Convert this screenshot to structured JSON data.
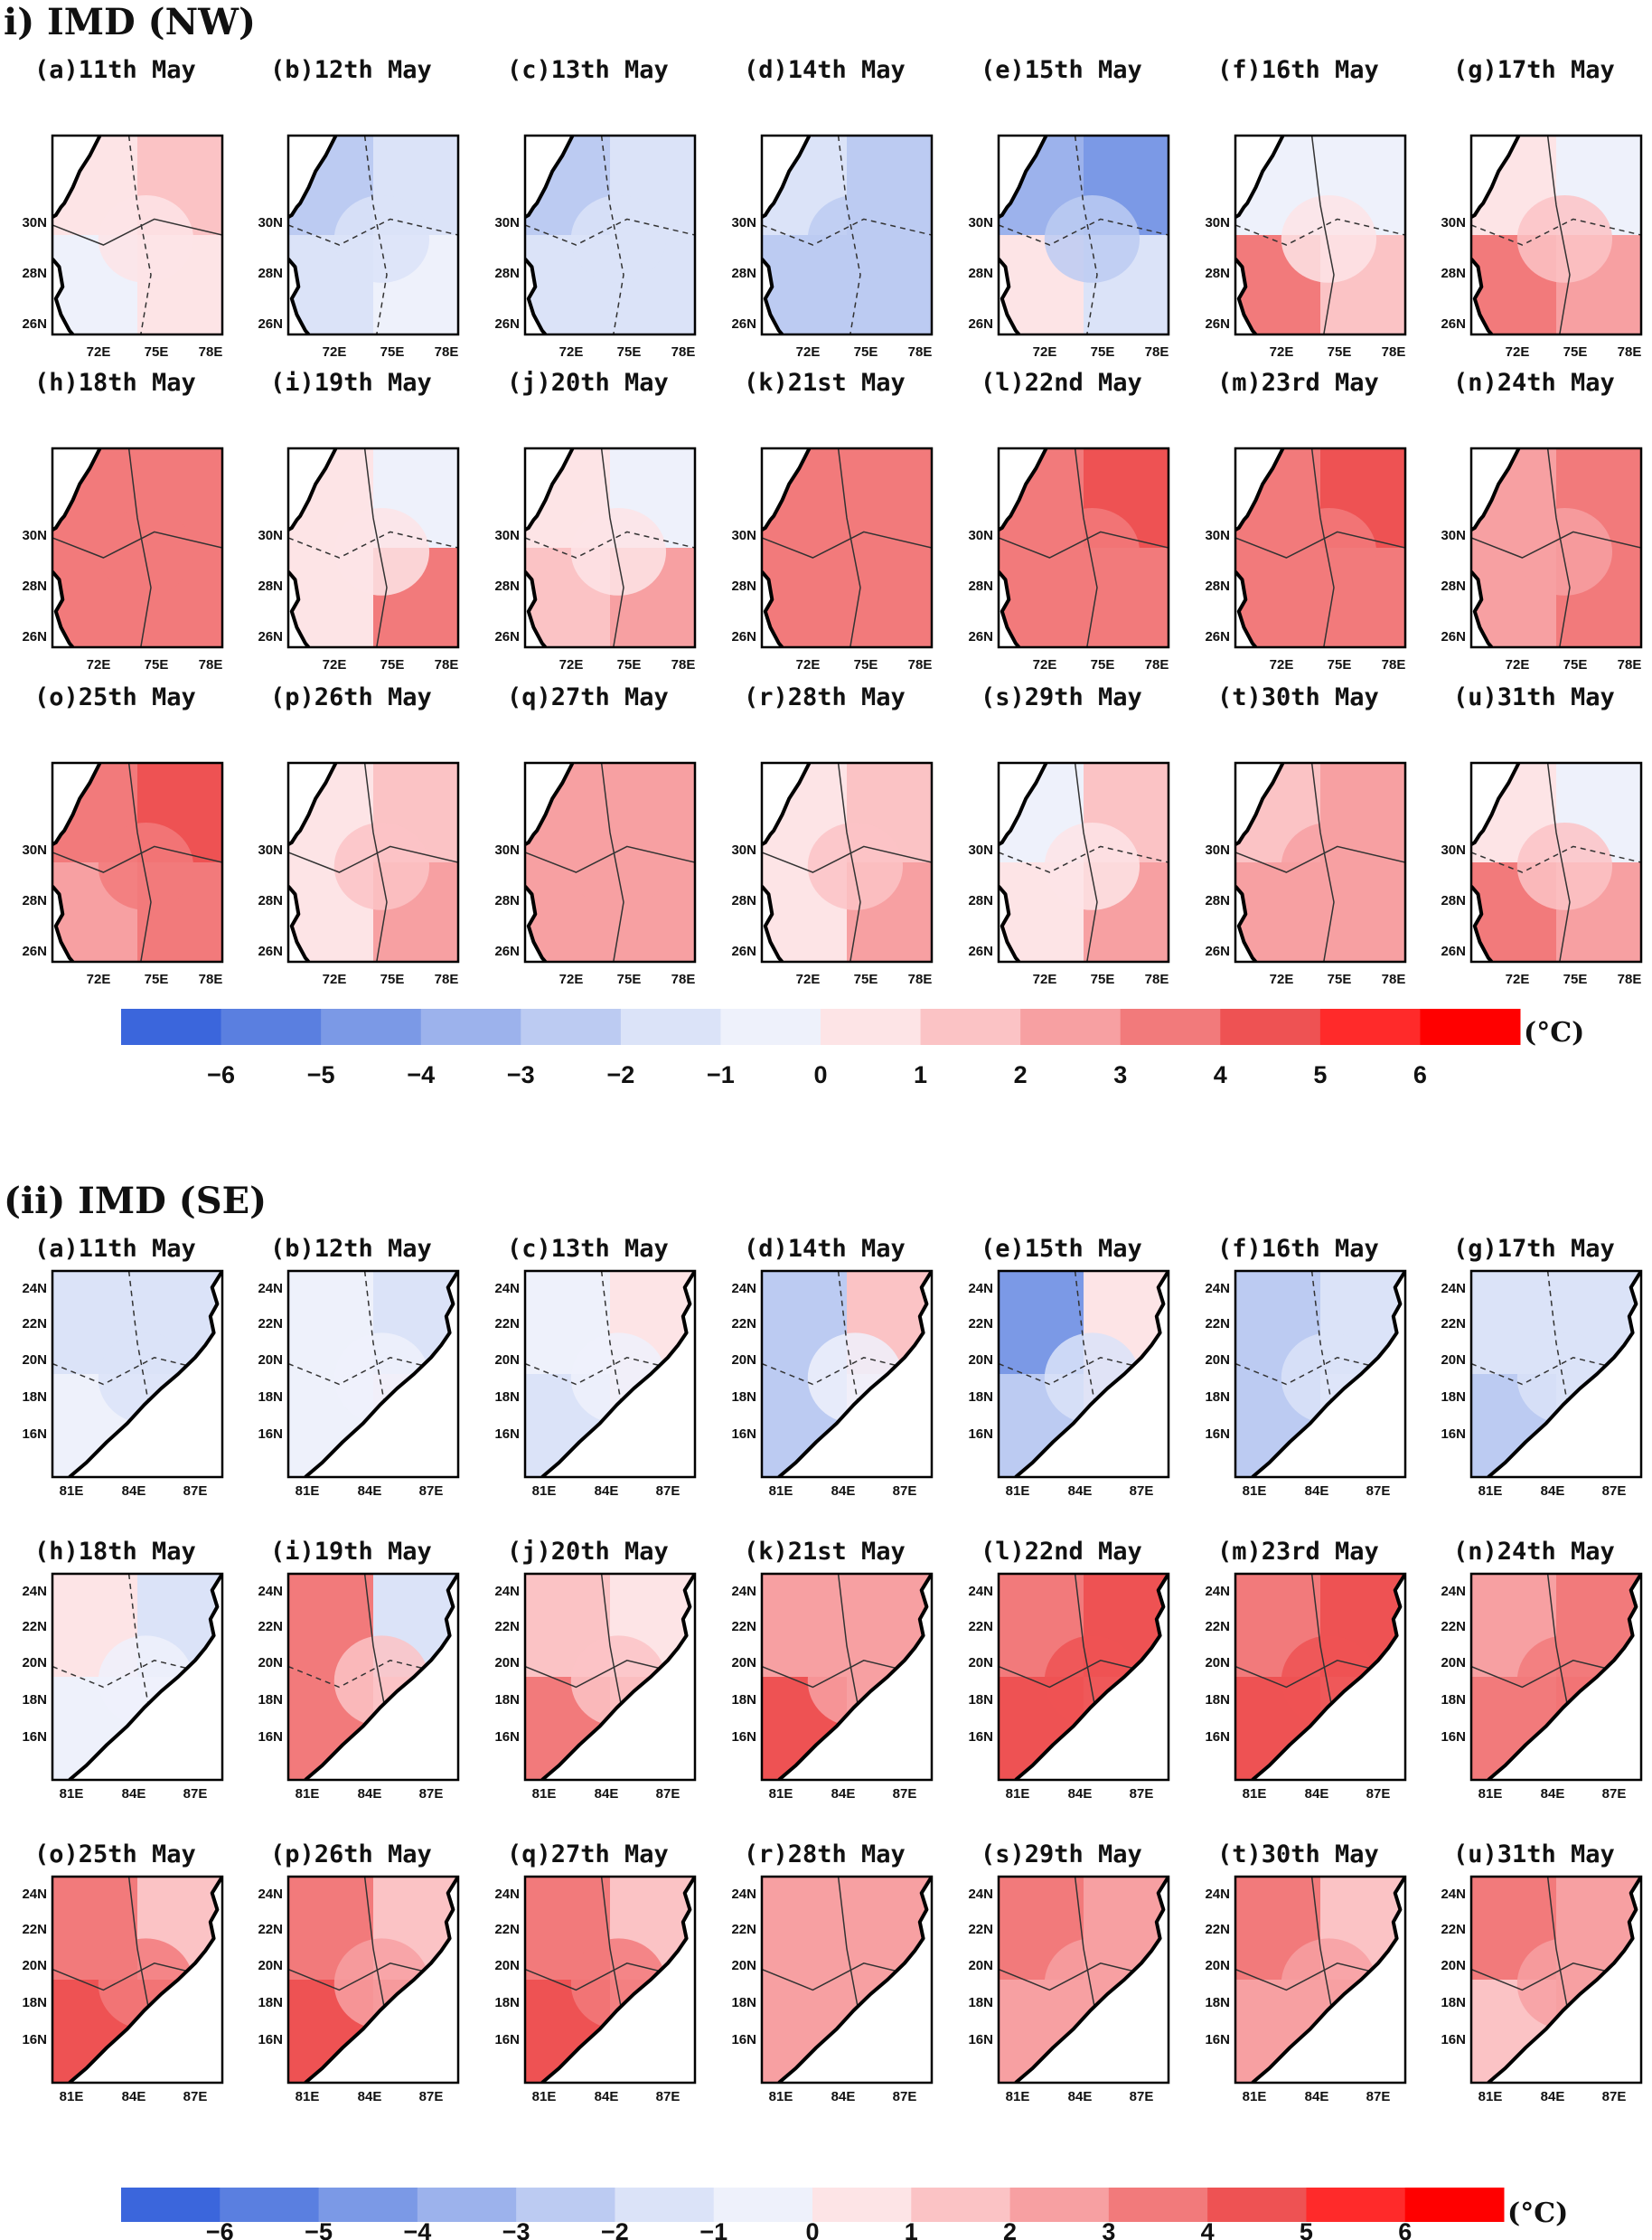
{
  "sections": [
    {
      "id": "nw",
      "title": "i)      IMD (NW)",
      "region": "nw",
      "lat_ticks": [
        "30N",
        "28N",
        "26N"
      ],
      "lon_ticks": [
        "72E",
        "75E",
        "78E"
      ],
      "panels": [
        {
          "label": "(a)11th May",
          "anom": [
            0.5,
            1.5,
            -0.5,
            0.8
          ]
        },
        {
          "label": "(b)12th May",
          "anom": [
            -2.5,
            -2.0,
            -1.5,
            -1.0
          ]
        },
        {
          "label": "(c)13th May",
          "anom": [
            -2.5,
            -2.0,
            -1.5,
            -1.2
          ]
        },
        {
          "label": "(d)14th May",
          "anom": [
            -2.0,
            -3.0,
            -2.5,
            -2.8
          ]
        },
        {
          "label": "(e)15th May",
          "anom": [
            -4.0,
            -4.5,
            0.5,
            -1.5
          ]
        },
        {
          "label": "(f)16th May",
          "anom": [
            -0.5,
            -0.5,
            3.5,
            1.0
          ]
        },
        {
          "label": "(g)17th May",
          "anom": [
            0.5,
            -0.5,
            3.5,
            2.5
          ]
        },
        {
          "label": "(h)18th May",
          "anom": [
            3.0,
            3.0,
            3.0,
            3.0
          ]
        },
        {
          "label": "(i)19th May",
          "anom": [
            0.5,
            -0.5,
            0.5,
            3.0
          ]
        },
        {
          "label": "(j)20th May",
          "anom": [
            0.5,
            -0.5,
            1.0,
            2.0
          ]
        },
        {
          "label": "(k)21st May",
          "anom": [
            3.0,
            3.5,
            3.0,
            3.0
          ]
        },
        {
          "label": "(l)22nd May",
          "anom": [
            3.5,
            4.0,
            3.0,
            3.5
          ]
        },
        {
          "label": "(m)23rd May",
          "anom": [
            3.5,
            4.0,
            3.0,
            3.5
          ]
        },
        {
          "label": "(n)24th May",
          "anom": [
            2.5,
            3.0,
            2.0,
            3.0
          ]
        },
        {
          "label": "(o)25th May",
          "anom": [
            3.0,
            4.0,
            2.0,
            3.0
          ]
        },
        {
          "label": "(p)26th May",
          "anom": [
            0.5,
            1.5,
            0.5,
            2.0
          ]
        },
        {
          "label": "(q)27th May",
          "anom": [
            2.0,
            2.0,
            2.0,
            2.0
          ]
        },
        {
          "label": "(r)28th May",
          "anom": [
            0.5,
            1.5,
            0.5,
            2.0
          ]
        },
        {
          "label": "(s)29th May",
          "anom": [
            -0.5,
            1.5,
            0.5,
            2.0
          ]
        },
        {
          "label": "(t)30th May",
          "anom": [
            1.5,
            2.5,
            2.0,
            2.5
          ]
        },
        {
          "label": "(u)31th May",
          "anom": [
            0.5,
            -0.5,
            3.0,
            2.5
          ]
        }
      ]
    },
    {
      "id": "se",
      "title": "(ii)   IMD (SE)",
      "region": "se",
      "lat_ticks": [
        "24N",
        "22N",
        "20N",
        "18N",
        "16N"
      ],
      "lon_ticks": [
        "81E",
        "84E",
        "87E"
      ],
      "panels": [
        {
          "label": "(a)11th May",
          "anom": [
            -1.5,
            -2.0,
            -0.5,
            -1.0
          ]
        },
        {
          "label": "(b)12th May",
          "anom": [
            -0.5,
            -1.5,
            -0.5,
            0.5
          ]
        },
        {
          "label": "(c)13th May",
          "anom": [
            -1.0,
            0.5,
            -1.5,
            0.5
          ]
        },
        {
          "label": "(d)14th May",
          "anom": [
            -3.0,
            1.5,
            -2.5,
            0.5
          ]
        },
        {
          "label": "(e)15th May",
          "anom": [
            -5.0,
            0.5,
            -3.0,
            0.5
          ]
        },
        {
          "label": "(f)16th May",
          "anom": [
            -2.5,
            -1.5,
            -2.5,
            -0.5
          ]
        },
        {
          "label": "(g)17th May",
          "anom": [
            -2.0,
            -1.5,
            -3.0,
            -1.5
          ]
        },
        {
          "label": "(h)18th May",
          "anom": [
            0.5,
            -1.5,
            -0.5,
            -0.5
          ]
        },
        {
          "label": "(i)19th May",
          "anom": [
            3.0,
            -2.0,
            3.0,
            1.0
          ]
        },
        {
          "label": "(j)20th May",
          "anom": [
            1.0,
            0.5,
            3.5,
            2.0
          ]
        },
        {
          "label": "(k)21st May",
          "anom": [
            2.5,
            2.5,
            4.0,
            2.5
          ]
        },
        {
          "label": "(l)22nd May",
          "anom": [
            3.5,
            4.5,
            4.5,
            3.5
          ]
        },
        {
          "label": "(m)23rd May",
          "anom": [
            3.5,
            4.5,
            4.5,
            3.5
          ]
        },
        {
          "label": "(n)24th May",
          "anom": [
            2.5,
            3.5,
            3.5,
            4.5
          ]
        },
        {
          "label": "(o)25th May",
          "anom": [
            3.5,
            1.0,
            4.5,
            4.5
          ]
        },
        {
          "label": "(p)26th May",
          "anom": [
            3.0,
            1.0,
            4.5,
            3.0
          ]
        },
        {
          "label": "(q)27th May",
          "anom": [
            3.5,
            1.5,
            4.5,
            2.5
          ]
        },
        {
          "label": "(r)28th May",
          "anom": [
            2.5,
            2.5,
            2.5,
            2.5
          ]
        },
        {
          "label": "(s)29th May",
          "anom": [
            3.0,
            2.5,
            2.0,
            2.5
          ]
        },
        {
          "label": "(t)30th May",
          "anom": [
            3.0,
            1.5,
            2.5,
            2.5
          ]
        },
        {
          "label": "(u)31th May",
          "anom": [
            3.5,
            2.0,
            1.0,
            2.0
          ]
        }
      ]
    }
  ],
  "colorbar": {
    "unit": "(°C)",
    "labels": [
      "−6",
      "−5",
      "−4",
      "−3",
      "−2",
      "−1",
      "0",
      "1",
      "2",
      "3",
      "4",
      "5",
      "6"
    ],
    "levels": [
      -6,
      -5,
      -4,
      -3,
      -2,
      -1,
      0,
      1,
      2,
      3,
      4,
      5,
      6
    ],
    "colors": [
      "#3b66dc",
      "#5a7fe0",
      "#7b99e6",
      "#9cb2ec",
      "#bccbf2",
      "#dbe3f8",
      "#eef1fb",
      "#fde4e6",
      "#fbc3c5",
      "#f7a0a2",
      "#f27a7b",
      "#ee5253",
      "#ff2a2a",
      "#ff0000"
    ]
  }
}
